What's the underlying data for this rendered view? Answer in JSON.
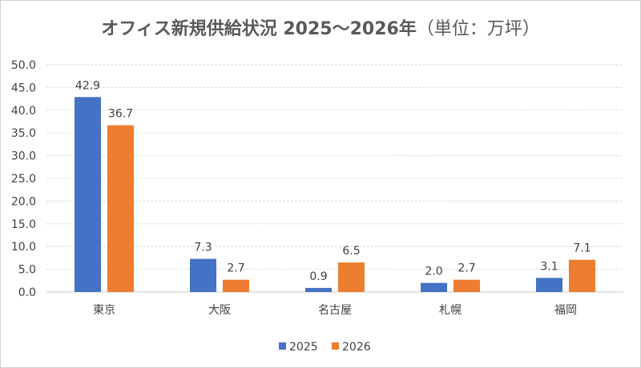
{
  "chart_data": {
    "type": "bar",
    "title": "オフィス新規供給状況 2025～2026年",
    "title_unit": "（単位：万坪）",
    "categories": [
      "東京",
      "大阪",
      "名古屋",
      "札幌",
      "福岡"
    ],
    "series": [
      {
        "name": "2025",
        "values": [
          42.9,
          7.3,
          0.9,
          2.0,
          3.1
        ],
        "color": "#4472C4"
      },
      {
        "name": "2026",
        "values": [
          36.7,
          2.7,
          6.5,
          2.7,
          7.1
        ],
        "color": "#ED7D31"
      }
    ],
    "yticks": [
      "0.0",
      "5.0",
      "10.0",
      "15.0",
      "20.0",
      "25.0",
      "30.0",
      "35.0",
      "40.0",
      "45.0",
      "50.0"
    ],
    "ylim": [
      0,
      50
    ],
    "grid": true,
    "legend": "bottom",
    "data_labels": true
  }
}
